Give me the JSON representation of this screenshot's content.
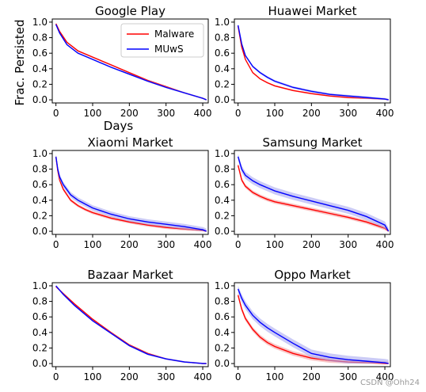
{
  "watermark": "CSDN @Ohh24",
  "colors": {
    "malware": "#ff0000",
    "muws": "#0000ff",
    "malware_band": "#f4a0a0",
    "muws_band": "#a8a8f0"
  },
  "chart_data": [
    {
      "type": "line",
      "title": "Google Play",
      "xlabel": "Days",
      "ylabel": "Frac. Persisted",
      "xlim": [
        -10,
        415
      ],
      "ylim": [
        -0.04,
        1.04
      ],
      "xticks": [
        0,
        100,
        200,
        300,
        400
      ],
      "yticks": [
        0.0,
        0.2,
        0.4,
        0.6,
        0.8,
        1.0
      ],
      "legend": "top-right",
      "series": [
        {
          "name": "Malware",
          "color": "#ff0000",
          "band": 0.01,
          "x": [
            0,
            10,
            30,
            60,
            100,
            150,
            200,
            250,
            300,
            350,
            400,
            410
          ],
          "y": [
            0.98,
            0.88,
            0.74,
            0.63,
            0.55,
            0.45,
            0.35,
            0.25,
            0.17,
            0.09,
            0.02,
            0.0
          ]
        },
        {
          "name": "MUwS",
          "color": "#0000ff",
          "band": 0.01,
          "x": [
            0,
            10,
            30,
            60,
            100,
            150,
            200,
            250,
            300,
            350,
            400,
            410
          ],
          "y": [
            0.97,
            0.86,
            0.71,
            0.6,
            0.52,
            0.42,
            0.33,
            0.24,
            0.16,
            0.09,
            0.02,
            0.0
          ]
        }
      ]
    },
    {
      "type": "line",
      "title": "Huawei Market",
      "xlabel": "",
      "ylabel": "",
      "xlim": [
        -10,
        415
      ],
      "ylim": [
        -0.04,
        1.04
      ],
      "xticks": [
        0,
        100,
        200,
        300,
        400
      ],
      "yticks": [
        0.0,
        0.2,
        0.4,
        0.6,
        0.8,
        1.0
      ],
      "series": [
        {
          "name": "Malware",
          "color": "#ff0000",
          "band": 0.01,
          "x": [
            0,
            10,
            20,
            40,
            60,
            80,
            100,
            150,
            200,
            250,
            300,
            350,
            400,
            410
          ],
          "y": [
            0.95,
            0.68,
            0.52,
            0.35,
            0.27,
            0.22,
            0.18,
            0.12,
            0.08,
            0.05,
            0.03,
            0.02,
            0.01,
            0.0
          ]
        },
        {
          "name": "MUwS",
          "color": "#0000ff",
          "band": 0.015,
          "x": [
            0,
            10,
            20,
            40,
            60,
            80,
            100,
            150,
            200,
            250,
            300,
            350,
            400,
            410
          ],
          "y": [
            0.96,
            0.72,
            0.57,
            0.43,
            0.35,
            0.29,
            0.24,
            0.16,
            0.11,
            0.07,
            0.05,
            0.03,
            0.01,
            0.0
          ]
        }
      ]
    },
    {
      "type": "line",
      "title": "Xiaomi Market",
      "xlabel": "",
      "ylabel": "",
      "xlim": [
        -10,
        415
      ],
      "ylim": [
        -0.04,
        1.04
      ],
      "xticks": [
        0,
        100,
        200,
        300,
        400
      ],
      "yticks": [
        0.0,
        0.2,
        0.4,
        0.6,
        0.8,
        1.0
      ],
      "series": [
        {
          "name": "Malware",
          "color": "#ff0000",
          "band": 0.02,
          "x": [
            0,
            5,
            10,
            20,
            40,
            60,
            80,
            100,
            150,
            200,
            250,
            300,
            350,
            400,
            410
          ],
          "y": [
            0.96,
            0.78,
            0.66,
            0.54,
            0.4,
            0.33,
            0.28,
            0.24,
            0.17,
            0.12,
            0.08,
            0.05,
            0.03,
            0.01,
            0.0
          ]
        },
        {
          "name": "MUwS",
          "color": "#0000ff",
          "band": 0.035,
          "x": [
            0,
            5,
            10,
            20,
            40,
            60,
            80,
            100,
            150,
            200,
            250,
            300,
            350,
            400,
            410
          ],
          "y": [
            0.96,
            0.8,
            0.7,
            0.6,
            0.47,
            0.4,
            0.35,
            0.3,
            0.22,
            0.16,
            0.12,
            0.09,
            0.06,
            0.02,
            0.0
          ]
        }
      ]
    },
    {
      "type": "line",
      "title": "Samsung Market",
      "xlabel": "",
      "ylabel": "",
      "xlim": [
        -10,
        415
      ],
      "ylim": [
        -0.04,
        1.04
      ],
      "xticks": [
        0,
        100,
        200,
        300,
        400
      ],
      "yticks": [
        0.0,
        0.2,
        0.4,
        0.6,
        0.8,
        1.0
      ],
      "series": [
        {
          "name": "Malware",
          "color": "#ff0000",
          "band": 0.025,
          "x": [
            0,
            10,
            20,
            40,
            60,
            80,
            100,
            150,
            200,
            250,
            300,
            350,
            400,
            410
          ],
          "y": [
            0.85,
            0.66,
            0.58,
            0.5,
            0.45,
            0.41,
            0.38,
            0.33,
            0.28,
            0.23,
            0.18,
            0.12,
            0.04,
            0.0
          ]
        },
        {
          "name": "MUwS",
          "color": "#0000ff",
          "band": 0.045,
          "x": [
            0,
            10,
            20,
            40,
            60,
            80,
            100,
            150,
            200,
            250,
            300,
            350,
            400,
            410
          ],
          "y": [
            0.96,
            0.8,
            0.72,
            0.65,
            0.6,
            0.56,
            0.52,
            0.45,
            0.39,
            0.33,
            0.27,
            0.19,
            0.08,
            0.0
          ]
        }
      ]
    },
    {
      "type": "line",
      "title": "Bazaar Market",
      "xlabel": "",
      "ylabel": "",
      "xlim": [
        -10,
        415
      ],
      "ylim": [
        -0.04,
        1.04
      ],
      "xticks": [
        0,
        100,
        200,
        300,
        400
      ],
      "yticks": [
        0.0,
        0.2,
        0.4,
        0.6,
        0.8,
        1.0
      ],
      "series": [
        {
          "name": "Malware",
          "color": "#ff0000",
          "band": 0.01,
          "x": [
            0,
            20,
            50,
            100,
            150,
            200,
            250,
            300,
            350,
            400,
            410
          ],
          "y": [
            0.99,
            0.9,
            0.77,
            0.57,
            0.4,
            0.24,
            0.13,
            0.06,
            0.02,
            0.0,
            0.0
          ]
        },
        {
          "name": "MUwS",
          "color": "#0000ff",
          "band": 0.01,
          "x": [
            0,
            20,
            50,
            100,
            150,
            200,
            250,
            300,
            350,
            400,
            410
          ],
          "y": [
            1.0,
            0.89,
            0.75,
            0.55,
            0.39,
            0.23,
            0.12,
            0.06,
            0.02,
            0.0,
            0.0
          ]
        }
      ]
    },
    {
      "type": "line",
      "title": "Oppo Market",
      "xlabel": "",
      "ylabel": "",
      "xlim": [
        -10,
        415
      ],
      "ylim": [
        -0.04,
        1.04
      ],
      "xticks": [
        0,
        100,
        200,
        300,
        400
      ],
      "yticks": [
        0.0,
        0.2,
        0.4,
        0.6,
        0.8,
        1.0
      ],
      "series": [
        {
          "name": "Malware",
          "color": "#ff0000",
          "band": 0.03,
          "x": [
            0,
            10,
            20,
            40,
            60,
            80,
            100,
            150,
            200,
            250,
            300,
            350,
            400,
            410
          ],
          "y": [
            0.88,
            0.7,
            0.58,
            0.44,
            0.34,
            0.27,
            0.22,
            0.13,
            0.07,
            0.04,
            0.02,
            0.01,
            0.0,
            0.0
          ]
        },
        {
          "name": "MUwS",
          "color": "#0000ff",
          "band": 0.05,
          "x": [
            0,
            10,
            20,
            40,
            60,
            80,
            100,
            150,
            200,
            250,
            300,
            350,
            400,
            410
          ],
          "y": [
            0.96,
            0.84,
            0.75,
            0.62,
            0.53,
            0.46,
            0.4,
            0.26,
            0.13,
            0.08,
            0.05,
            0.03,
            0.01,
            0.0
          ]
        }
      ]
    }
  ]
}
